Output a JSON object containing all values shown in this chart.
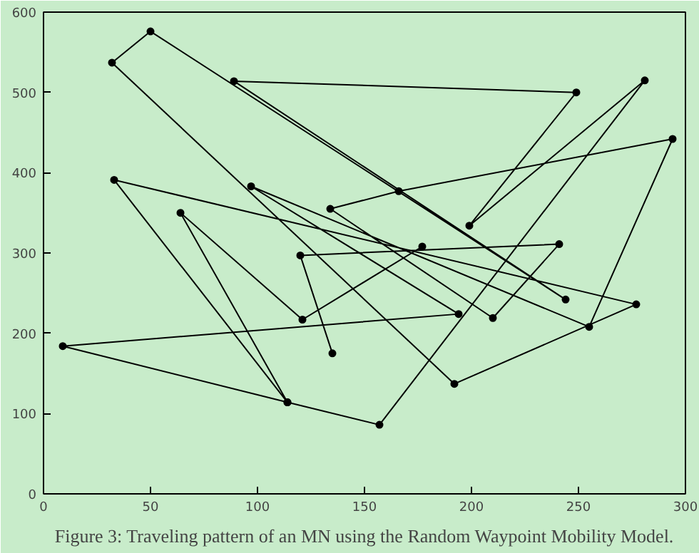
{
  "chart_data": {
    "type": "line",
    "marker": "circle",
    "line_style": "solid",
    "grid": false,
    "x": [
      135,
      120,
      241,
      210,
      134,
      166,
      294,
      255,
      97,
      194,
      9,
      114,
      33,
      277,
      192,
      32,
      50,
      244,
      89,
      249,
      199,
      281,
      157,
      114,
      64,
      121,
      177
    ],
    "series": [
      {
        "color": "#000000",
        "values": [
          175,
          297,
          311,
          219,
          355,
          377,
          442,
          208,
          383,
          224,
          184,
          114,
          391,
          236,
          137,
          537,
          576,
          242,
          514,
          500,
          334,
          515,
          86,
          114,
          350,
          217,
          308
        ]
      }
    ],
    "xlim": [
      0,
      300
    ],
    "ylim": [
      0,
      600
    ],
    "xticks": [
      0,
      50,
      100,
      150,
      200,
      250,
      300
    ],
    "yticks": [
      0,
      100,
      200,
      300,
      400,
      500,
      600
    ],
    "annotations": [
      "Figure 3: Traveling pattern of an MN using the Random Waypoint Mobility Model."
    ]
  }
}
